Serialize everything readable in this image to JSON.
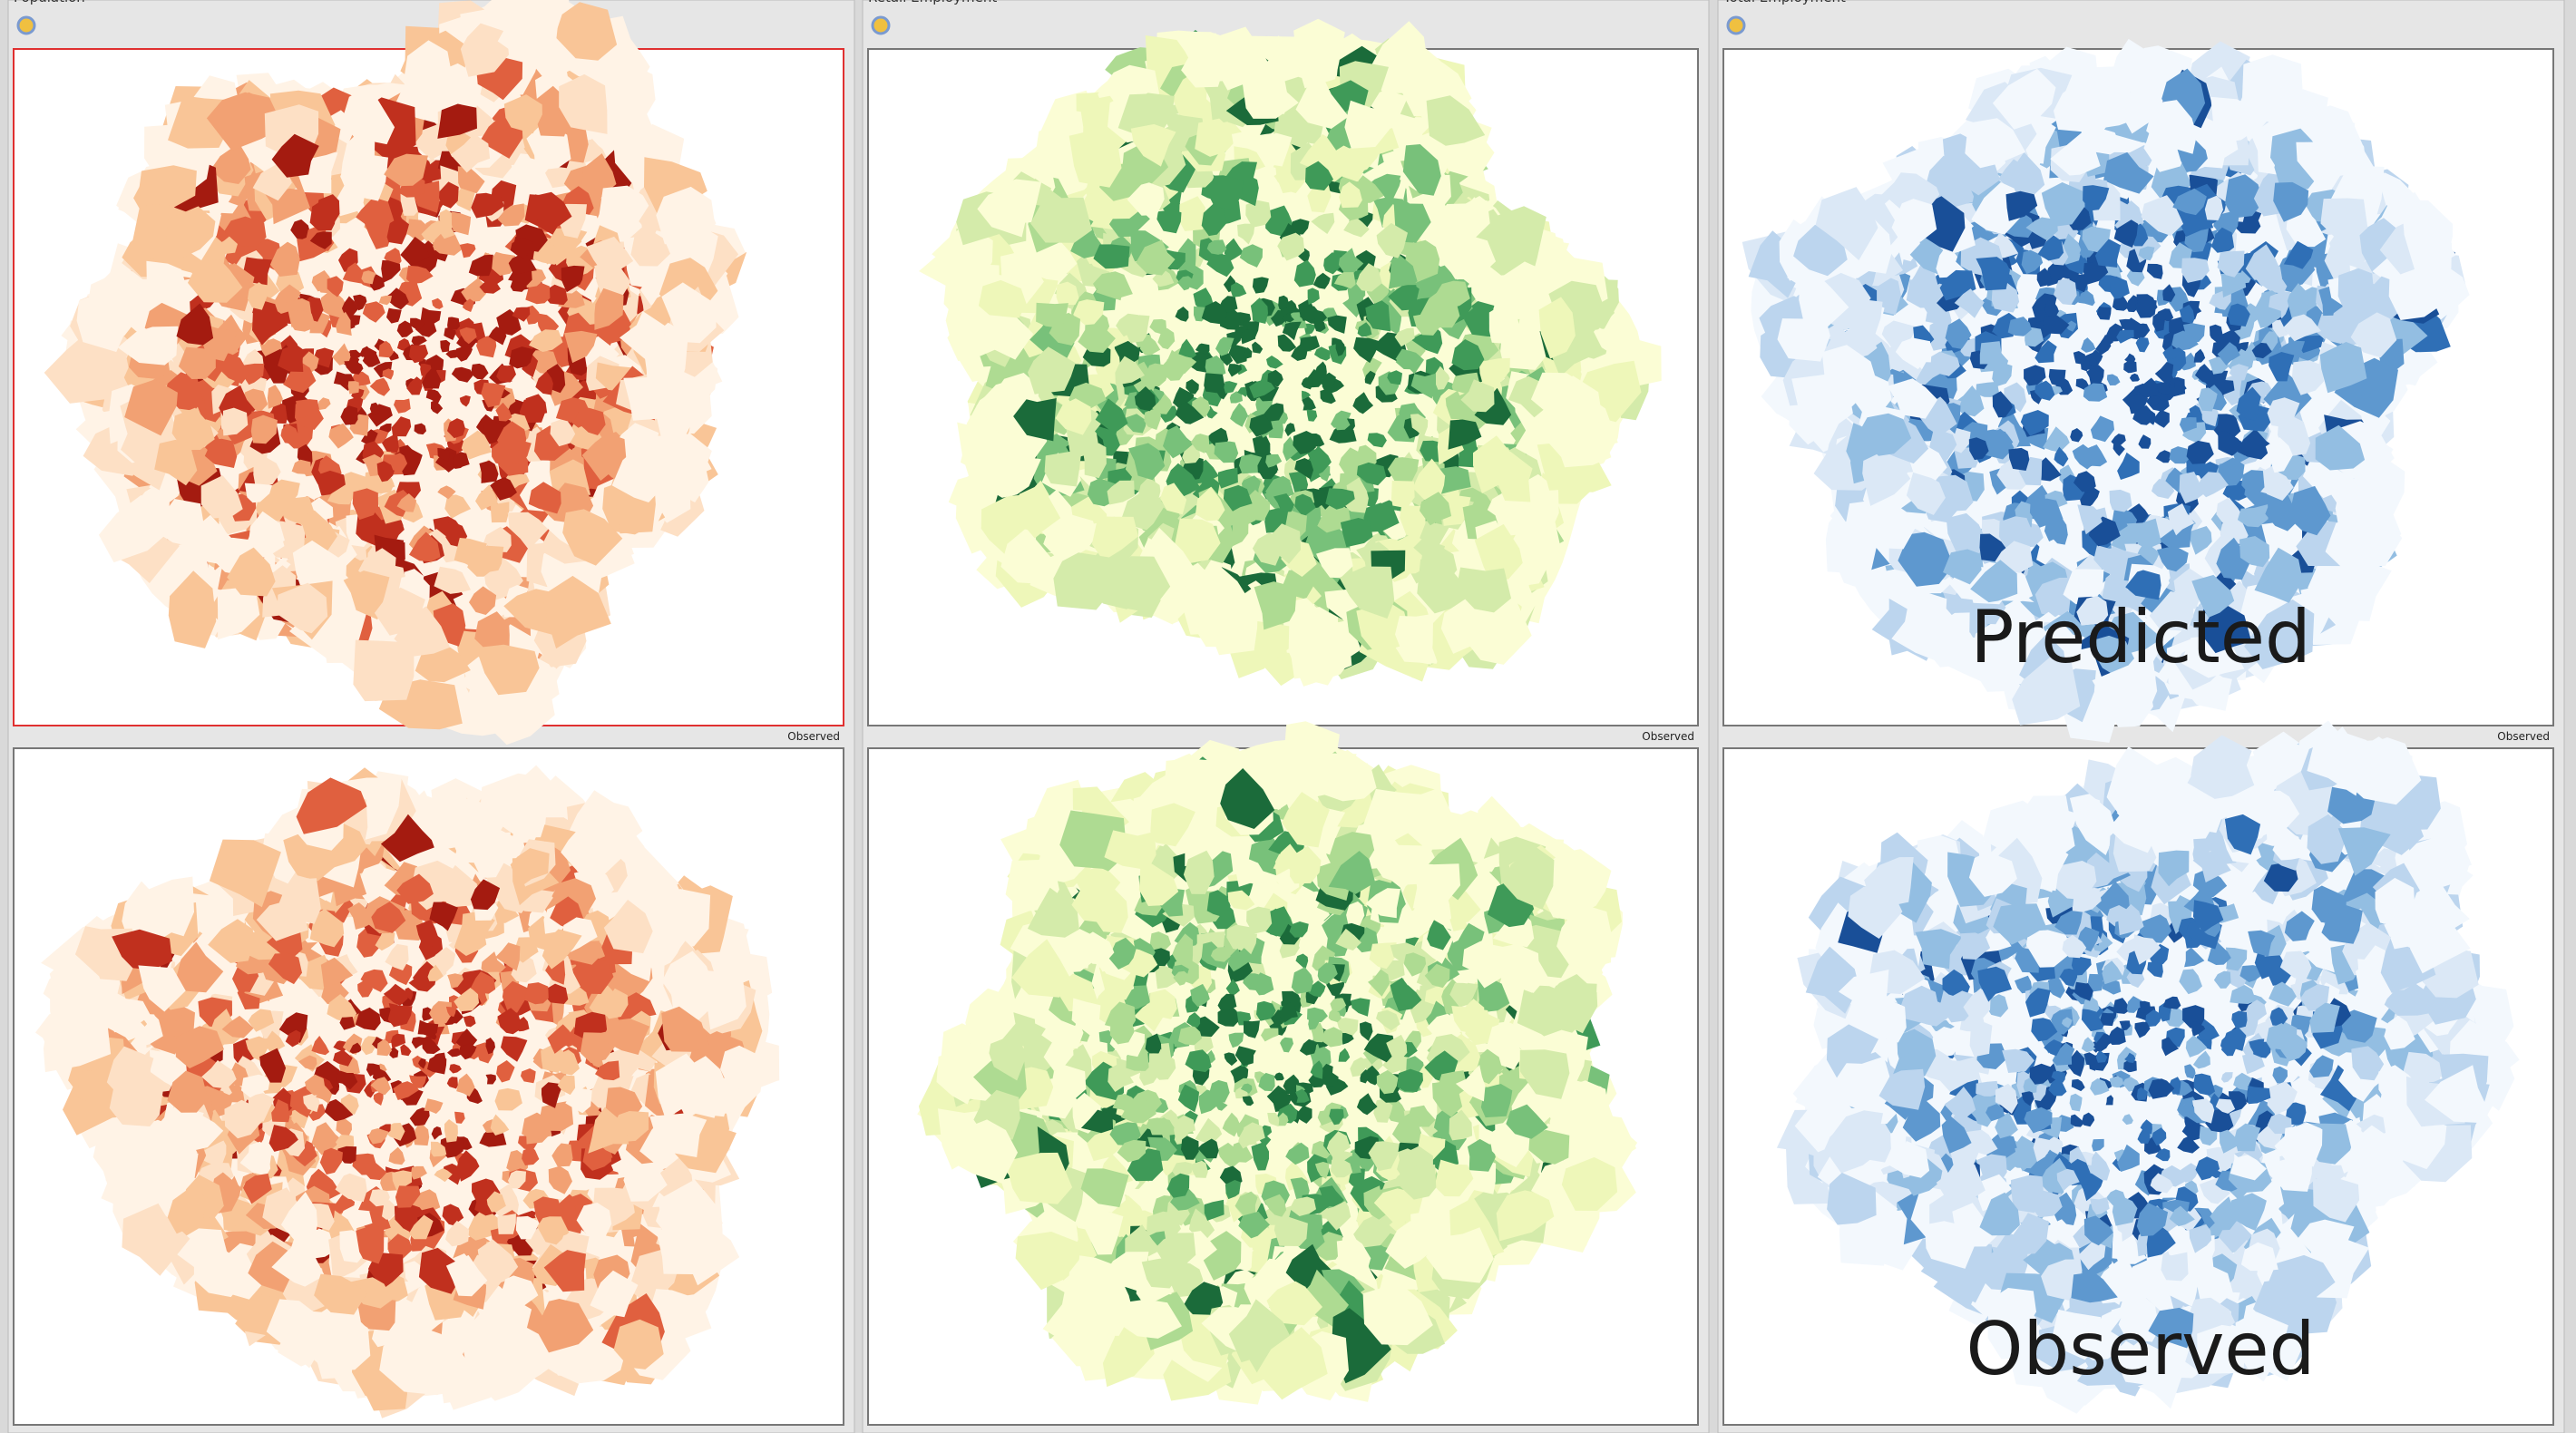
{
  "windows": [
    {
      "title": "Population",
      "status": "Observed"
    },
    {
      "title": "Retail Employment",
      "status": "Observed"
    },
    {
      "title": "Total Employment",
      "status": "Observed"
    }
  ],
  "annotations": {
    "top": "Predicted",
    "bottom": "Observed"
  }
}
